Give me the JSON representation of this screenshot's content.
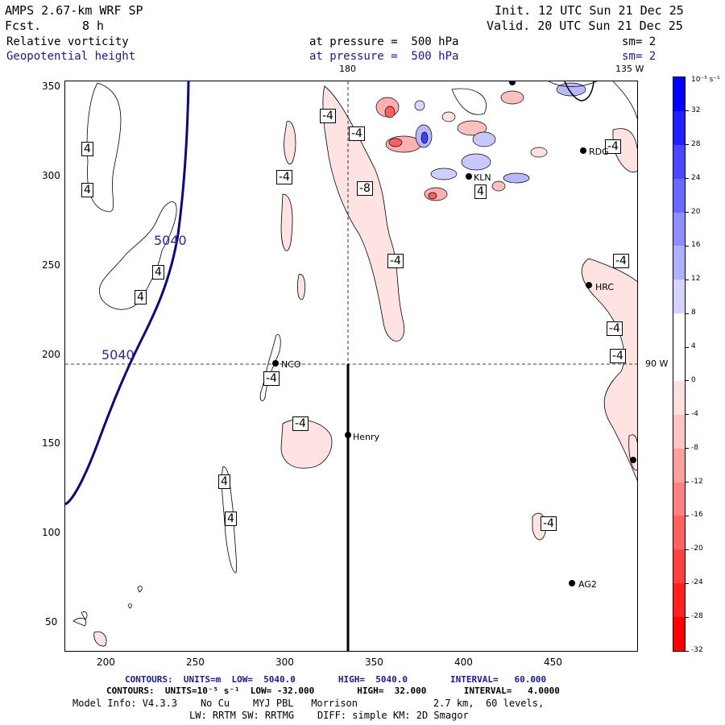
{
  "header": {
    "model": "AMPS 2.67-km WRF SP",
    "fcst_label": "Fcst.",
    "fcst_value": "8 h",
    "init": "Init. 12 UTC Sun 21 Dec 25",
    "valid": "Valid. 20 UTC Sun 21 Dec 25",
    "field1": "Relative vorticity",
    "field1_level": "at pressure =  500 hPa",
    "field1_sm": "sm= 2",
    "field2": "Geopotential height",
    "field2_level": "at pressure =  500 hPa",
    "field2_sm": "sm= 2"
  },
  "map_labels": {
    "lon_180": "180",
    "lon_135w": "135 W",
    "lon_90w": "90 W",
    "height_contour_upper": "5040",
    "height_contour_lower": "5040"
  },
  "axes": {
    "x_ticks": [
      "200",
      "250",
      "300",
      "350",
      "400",
      "450"
    ],
    "y_ticks": [
      "350",
      "300",
      "250",
      "200",
      "150",
      "100",
      "50"
    ]
  },
  "contour_labels": [
    "4",
    "4",
    "4",
    "4",
    "-4",
    "-4",
    "-4",
    "-8",
    "-4",
    "4",
    "-4",
    "-4",
    "-4",
    "-4",
    "-4",
    "-4",
    "4",
    "4",
    "-4"
  ],
  "stations": [
    "NCO",
    "Henry",
    "RDG",
    "KLN",
    "HRC",
    "AG2"
  ],
  "colorbar": {
    "unit": "10⁻⁵ s⁻¹",
    "tick_labels": [
      "32",
      "28",
      "24",
      "20",
      "16",
      "12",
      "8",
      "4",
      "0",
      "-4",
      "-8",
      "-12",
      "-16",
      "-20",
      "-24",
      "-28",
      "-32"
    ],
    "colors": [
      "#0000ff",
      "#2020ff",
      "#4848ff",
      "#6a6aff",
      "#8e8eff",
      "#b0b0ff",
      "#d4d4ff",
      "#ffffff",
      "#ffffff",
      "#ffe0e0",
      "#ffc4c4",
      "#ffa0a0",
      "#ff8080",
      "#ff6060",
      "#ff4040",
      "#ff2020",
      "#ff0000"
    ]
  },
  "footer": {
    "line1": "CONTOURS:  UNITS=m  LOW=  5040.0        HIGH=  5040.0        INTERVAL=   60.000",
    "line2": "CONTOURS:  UNITS=10⁻⁵ s⁻¹  LOW= -32.000        HIGH=  32.000       INTERVAL=   4.0000",
    "line3": "Model Info: V4.3.3    No Cu    MYJ PBL   Morrison             2.7 km,  60 levels,",
    "line4": "LW: RRTM SW: RRTMG    DIFF: simple KM: 2D Smagor"
  }
}
